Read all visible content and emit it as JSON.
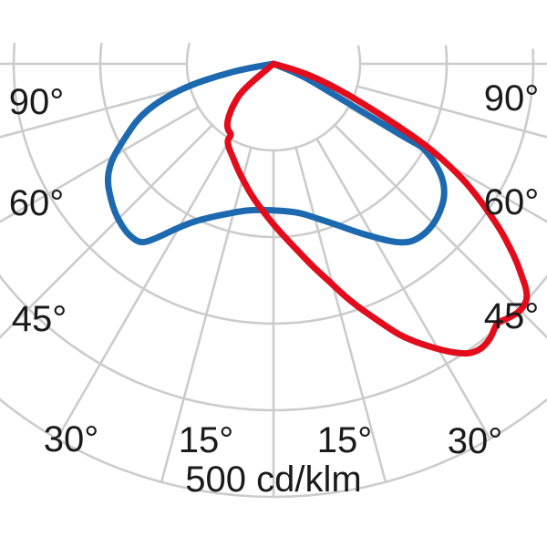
{
  "chart_data": {
    "type": "line",
    "variant": "polar-photometric-intensity-distribution",
    "unit_label": "500 cd/klm",
    "grid_color": "#cccccc",
    "legend": "none",
    "radial_axis": {
      "unit": "cd/klm",
      "rings": [
        100,
        200,
        300,
        400,
        500
      ]
    },
    "angle_axis": {
      "unit": "degrees",
      "min_deg": -90,
      "max_deg": 90,
      "tick_step_deg": 15,
      "labels_left": [
        "90°",
        "60°",
        "45°",
        "30°",
        "15°"
      ],
      "labels_right": [
        "90°",
        "60°",
        "45°",
        "30°",
        "15°"
      ]
    },
    "series": [
      {
        "name": "blue-curve",
        "color": "#1d69b0",
        "points_gamma_intensity": [
          [
            -90,
            0
          ],
          [
            -80.5,
            32
          ],
          [
            -77.8,
            65
          ],
          [
            -75.7,
            98
          ],
          [
            -73.1,
            127
          ],
          [
            -70.4,
            151
          ],
          [
            -67.5,
            171
          ],
          [
            -64.3,
            187
          ],
          [
            -61.6,
            203
          ],
          [
            -59.3,
            217
          ],
          [
            -56.5,
            229
          ],
          [
            -53.8,
            237
          ],
          [
            -50.4,
            244
          ],
          [
            -46.9,
            251
          ],
          [
            -43.3,
            256
          ],
          [
            -40,
            259
          ],
          [
            -36.4,
            258
          ],
          [
            -34.1,
            244
          ],
          [
            -31.1,
            224
          ],
          [
            -27.4,
            206
          ],
          [
            -22.6,
            192
          ],
          [
            -17,
            181
          ],
          [
            -10.6,
            172
          ],
          [
            -3.6,
            169
          ],
          [
            3.6,
            170
          ],
          [
            10.4,
            175
          ],
          [
            16.4,
            187
          ],
          [
            21.6,
            200
          ],
          [
            26.1,
            216
          ],
          [
            30.1,
            231
          ],
          [
            32.8,
            243
          ],
          [
            35.5,
            254
          ],
          [
            38.3,
            261
          ],
          [
            42.2,
            263
          ],
          [
            45.5,
            261
          ],
          [
            48.5,
            257
          ],
          [
            51.8,
            251
          ],
          [
            54.8,
            241
          ],
          [
            57.2,
            228
          ],
          [
            59.3,
            212
          ],
          [
            60.9,
            196
          ],
          [
            60.7,
            179
          ],
          [
            61.2,
            144
          ],
          [
            61.9,
            107
          ],
          [
            63.4,
            71
          ],
          [
            67.9,
            36
          ],
          [
            90,
            0
          ]
        ]
      },
      {
        "name": "red-curve",
        "color": "#e30c1c",
        "points_gamma_intensity": [
          [
            -50,
            0
          ],
          [
            -49.8,
            18
          ],
          [
            -50,
            34
          ],
          [
            -48.4,
            51
          ],
          [
            -45,
            64
          ],
          [
            -41.6,
            76
          ],
          [
            -38.1,
            87
          ],
          [
            -34.4,
            93
          ],
          [
            -30.5,
            95
          ],
          [
            -31.3,
            103
          ],
          [
            -28,
            110
          ],
          [
            -23.8,
            117
          ],
          [
            -18.6,
            129
          ],
          [
            -13.8,
            141
          ],
          [
            -9.5,
            154
          ],
          [
            -5.5,
            166
          ],
          [
            -1.7,
            179
          ],
          [
            1.9,
            193
          ],
          [
            5.2,
            207
          ],
          [
            8.4,
            223
          ],
          [
            11.4,
            241
          ],
          [
            14.2,
            258
          ],
          [
            16.6,
            277
          ],
          [
            18.8,
            294
          ],
          [
            20.9,
            310
          ],
          [
            22.8,
            326
          ],
          [
            24.9,
            345
          ],
          [
            27.1,
            361
          ],
          [
            29.2,
            375
          ],
          [
            31.3,
            389
          ],
          [
            33.2,
            400
          ],
          [
            34.5,
            405
          ],
          [
            35.9,
            407
          ],
          [
            37.3,
            406
          ],
          [
            38.6,
            403
          ],
          [
            39.9,
            398
          ],
          [
            40.9,
            395
          ],
          [
            42,
            398
          ],
          [
            43.4,
            401
          ],
          [
            44.8,
            403
          ],
          [
            46.1,
            402
          ],
          [
            47.2,
            399
          ],
          [
            48.3,
            391
          ],
          [
            49.4,
            378
          ],
          [
            50.8,
            363
          ],
          [
            52.2,
            345
          ],
          [
            53.8,
            325
          ],
          [
            55.3,
            303
          ],
          [
            57,
            280
          ],
          [
            58.6,
            257
          ],
          [
            60,
            233
          ],
          [
            61.3,
            210
          ],
          [
            62.4,
            186
          ],
          [
            63.4,
            162
          ],
          [
            64.6,
            137
          ],
          [
            66.1,
            112
          ],
          [
            68.2,
            85
          ],
          [
            70.9,
            58
          ],
          [
            74.1,
            31
          ],
          [
            80,
            0
          ]
        ]
      }
    ]
  }
}
